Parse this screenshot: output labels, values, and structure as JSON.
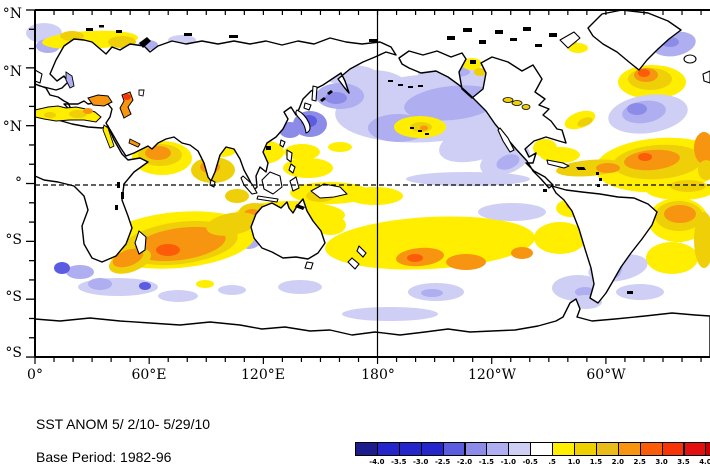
{
  "captions": {
    "title": "SST ANOM  5/ 2/10- 5/29/10",
    "base_period": "Base Period: 1982-96"
  },
  "x_axis": {
    "tick_labels": [
      "0°",
      "60°E",
      "120°E",
      "180°",
      "120°W",
      "60°W"
    ]
  },
  "y_axis": {
    "tick_labels": [
      "°N",
      "°N",
      "°N",
      "°",
      "°S",
      "°S",
      "°S"
    ]
  },
  "colorbar": {
    "tick_labels": [
      "-4.0",
      "-3.5",
      "-3.0",
      "-2.5",
      "-2.0",
      "-1.5",
      "-1.0",
      "-0.5",
      ".5",
      "1.0",
      "1.5",
      "2.0",
      "2.5",
      "3.0",
      "3.5",
      "4.0"
    ],
    "colors": [
      "#1c1c8c",
      "#2525cc",
      "#2525cc",
      "#2525cc",
      "#5c5ce0",
      "#8c8ce8",
      "#aeaef0",
      "#cfcff6",
      "#ffffff",
      "#ffee00",
      "#eed000",
      "#e9bc1a",
      "#f79510",
      "#fb5c08",
      "#f63408",
      "#e21010",
      "#c40000"
    ]
  },
  "palette": {
    "m25": "#2c2ccc",
    "m20": "#5c5ce0",
    "m15": "#8c8ce8",
    "m10": "#aeaef0",
    "m05": "#cfcff6",
    "p05": "#ffee00",
    "p10": "#efcf08",
    "p15": "#e9bc1a",
    "p20": "#f79510",
    "p25": "#fb5c08",
    "p30": "#f63408",
    "land": "#ffffff",
    "coast": "#000000",
    "ocean": "#ffffff"
  },
  "chart_data": {
    "type": "heatmap",
    "title": "SST ANOM  5/ 2/10- 5/29/10",
    "subtitle": "Base Period: 1982-96",
    "projection": "equidistant cylindrical world map, 0°E eastward to 354°E, 90°N to 90°S",
    "x_axis": {
      "range_deg_east": [
        0,
        360
      ],
      "labeled_every_deg": 60,
      "minor_tick_deg": 10,
      "labels": [
        "0°",
        "60°E",
        "120°E",
        "180°",
        "120°W",
        "60°W"
      ]
    },
    "y_axis": {
      "range_deg": [
        -90,
        90
      ],
      "labeled_every_deg": 30,
      "minor_tick_deg": 10,
      "labels_visible": [
        "°N",
        "°N",
        "°N",
        "°",
        "°S",
        "°S",
        "°S"
      ],
      "note": "latitude numerals clipped at left image edge"
    },
    "grid_lines": [
      "dashed equator line",
      "solid meridian line at 180°"
    ],
    "colorbar": {
      "boundaries": [
        -4.0,
        -3.5,
        -3.0,
        -2.5,
        -2.0,
        -1.5,
        -1.0,
        -0.5,
        0.5,
        1.0,
        1.5,
        2.0,
        2.5,
        3.0,
        3.5,
        4.0
      ],
      "position": "bottom right, overflows right edge"
    },
    "anomaly_regions": [
      {
        "region": "North Pacific 25-55N basin-wide",
        "sign": "negative",
        "approx_peak": -1.0
      },
      {
        "region": "Sea of Japan / NW Pacific near Japan",
        "sign": "negative",
        "approx_peak": -2.0
      },
      {
        "region": "NE Pacific off Central America",
        "sign": "negative",
        "approx_peak": -1.5
      },
      {
        "region": "Central N Pacific near Hawaii",
        "sign": "positive",
        "approx_peak": 1.5
      },
      {
        "region": "Equatorial central Pacific just north of equator",
        "sign": "weak negative",
        "approx_peak": -0.5
      },
      {
        "region": "West Pacific warm pool / Indonesia / S China Sea",
        "sign": "positive",
        "approx_peak": 1.5
      },
      {
        "region": "Subtropical South Pacific 20-35S band",
        "sign": "positive",
        "approx_peak": 2.5
      },
      {
        "region": "South of Greenland N Atlantic",
        "sign": "positive",
        "approx_peak": 3.0
      },
      {
        "region": "NW Atlantic 35-45N",
        "sign": "negative",
        "approx_peak": -2.0
      },
      {
        "region": "Tropical North Atlantic 5-25N",
        "sign": "positive",
        "approx_peak": 2.5
      },
      {
        "region": "Caribbean and Gulf of Mexico",
        "sign": "positive",
        "approx_peak": 2.0
      },
      {
        "region": "Mediterranean, Black Sea, Caspian Sea",
        "sign": "positive",
        "approx_peak": 3.0
      },
      {
        "region": "Arabian Sea and Bay of Bengal",
        "sign": "positive",
        "approx_peak": 2.0
      },
      {
        "region": "SW Indian Ocean 15-35S",
        "sign": "positive",
        "approx_peak": 2.5
      },
      {
        "region": "S Atlantic off Brazil",
        "sign": "positive",
        "approx_peak": 2.0
      },
      {
        "region": "SW Atlantic off Argentina",
        "sign": "negative",
        "approx_peak": -1.5
      },
      {
        "region": "Southern Ocean 40-60S scattered patches",
        "sign": "mixed",
        "approx_peak": 1.0
      }
    ]
  }
}
